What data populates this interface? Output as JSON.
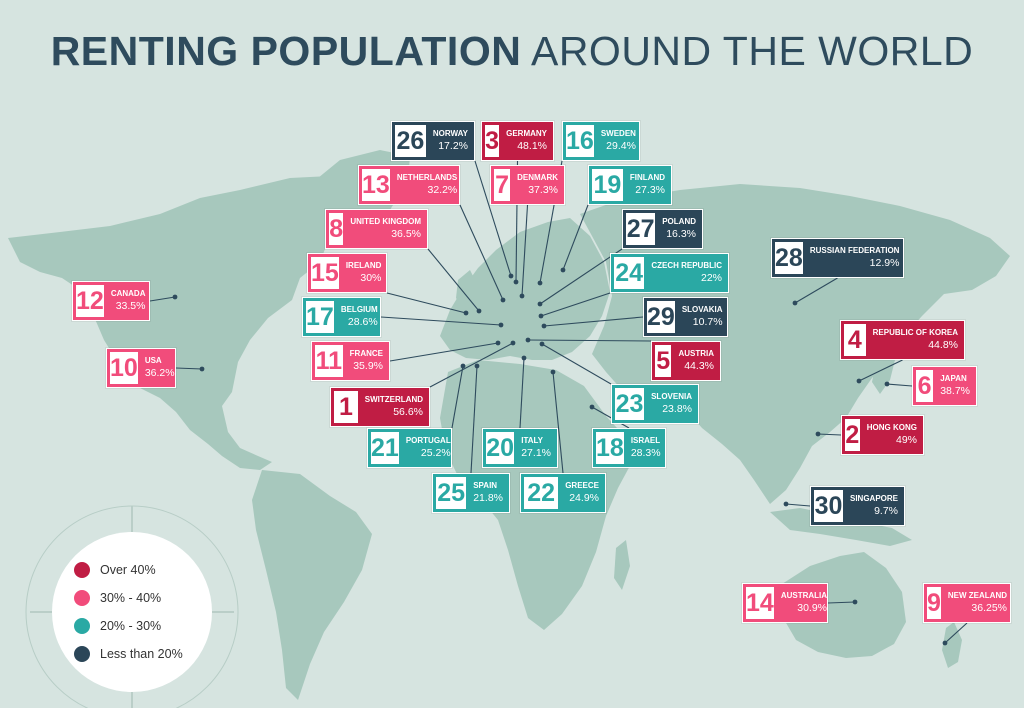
{
  "title": {
    "part1": "RENTING POPULATION",
    "part2": "AROUND THE WORLD"
  },
  "legend": [
    {
      "label": "Over 40%",
      "color": "#c01d44"
    },
    {
      "label": "30% - 40%",
      "color": "#f14c7b"
    },
    {
      "label": "20% - 30%",
      "color": "#2aa9a4"
    },
    {
      "label": "Less than 20%",
      "color": "#2b4658"
    }
  ],
  "countries": [
    {
      "rank": "26",
      "name": "NORWAY",
      "pct": "17.2%",
      "category": "under20"
    },
    {
      "rank": "3",
      "name": "GERMANY",
      "pct": "48.1%",
      "category": "over40"
    },
    {
      "rank": "16",
      "name": "SWEDEN",
      "pct": "29.4%",
      "category": "20to30"
    },
    {
      "rank": "13",
      "name": "NETHERLANDS",
      "pct": "32.2%",
      "category": "30to40"
    },
    {
      "rank": "7",
      "name": "DENMARK",
      "pct": "37.3%",
      "category": "30to40"
    },
    {
      "rank": "19",
      "name": "FINLAND",
      "pct": "27.3%",
      "category": "20to30"
    },
    {
      "rank": "8",
      "name": "UNITED KINGDOM",
      "pct": "36.5%",
      "category": "30to40"
    },
    {
      "rank": "27",
      "name": "POLAND",
      "pct": "16.3%",
      "category": "under20"
    },
    {
      "rank": "15",
      "name": "IRELAND",
      "pct": "30%",
      "category": "30to40"
    },
    {
      "rank": "24",
      "name": "CZECH REPUBLIC",
      "pct": "22%",
      "category": "20to30"
    },
    {
      "rank": "28",
      "name": "RUSSIAN FEDERATION",
      "pct": "12.9%",
      "category": "under20"
    },
    {
      "rank": "12",
      "name": "CANADA",
      "pct": "33.5%",
      "category": "30to40"
    },
    {
      "rank": "17",
      "name": "BELGIUM",
      "pct": "28.6%",
      "category": "20to30"
    },
    {
      "rank": "29",
      "name": "SLOVAKIA",
      "pct": "10.7%",
      "category": "under20"
    },
    {
      "rank": "4",
      "name": "REPUBLIC OF KOREA",
      "pct": "44.8%",
      "category": "over40"
    },
    {
      "rank": "10",
      "name": "USA",
      "pct": "36.2%",
      "category": "30to40"
    },
    {
      "rank": "11",
      "name": "FRANCE",
      "pct": "35.9%",
      "category": "30to40"
    },
    {
      "rank": "5",
      "name": "AUSTRIA",
      "pct": "44.3%",
      "category": "over40"
    },
    {
      "rank": "6",
      "name": "JAPAN",
      "pct": "38.7%",
      "category": "30to40"
    },
    {
      "rank": "1",
      "name": "SWITZERLAND",
      "pct": "56.6%",
      "category": "over40"
    },
    {
      "rank": "23",
      "name": "SLOVENIA",
      "pct": "23.8%",
      "category": "20to30"
    },
    {
      "rank": "2",
      "name": "HONG KONG",
      "pct": "49%",
      "category": "over40"
    },
    {
      "rank": "21",
      "name": "PORTUGAL",
      "pct": "25.2%",
      "category": "20to30"
    },
    {
      "rank": "20",
      "name": "ITALY",
      "pct": "27.1%",
      "category": "20to30"
    },
    {
      "rank": "18",
      "name": "ISRAEL",
      "pct": "28.3%",
      "category": "20to30"
    },
    {
      "rank": "25",
      "name": "SPAIN",
      "pct": "21.8%",
      "category": "20to30"
    },
    {
      "rank": "22",
      "name": "GREECE",
      "pct": "24.9%",
      "category": "20to30"
    },
    {
      "rank": "30",
      "name": "SINGAPORE",
      "pct": "9.7%",
      "category": "under20"
    },
    {
      "rank": "14",
      "name": "AUSTRALIA",
      "pct": "30.9%",
      "category": "30to40"
    },
    {
      "rank": "9",
      "name": "NEW ZEALAND",
      "pct": "36.25%",
      "category": "30to40"
    }
  ]
}
